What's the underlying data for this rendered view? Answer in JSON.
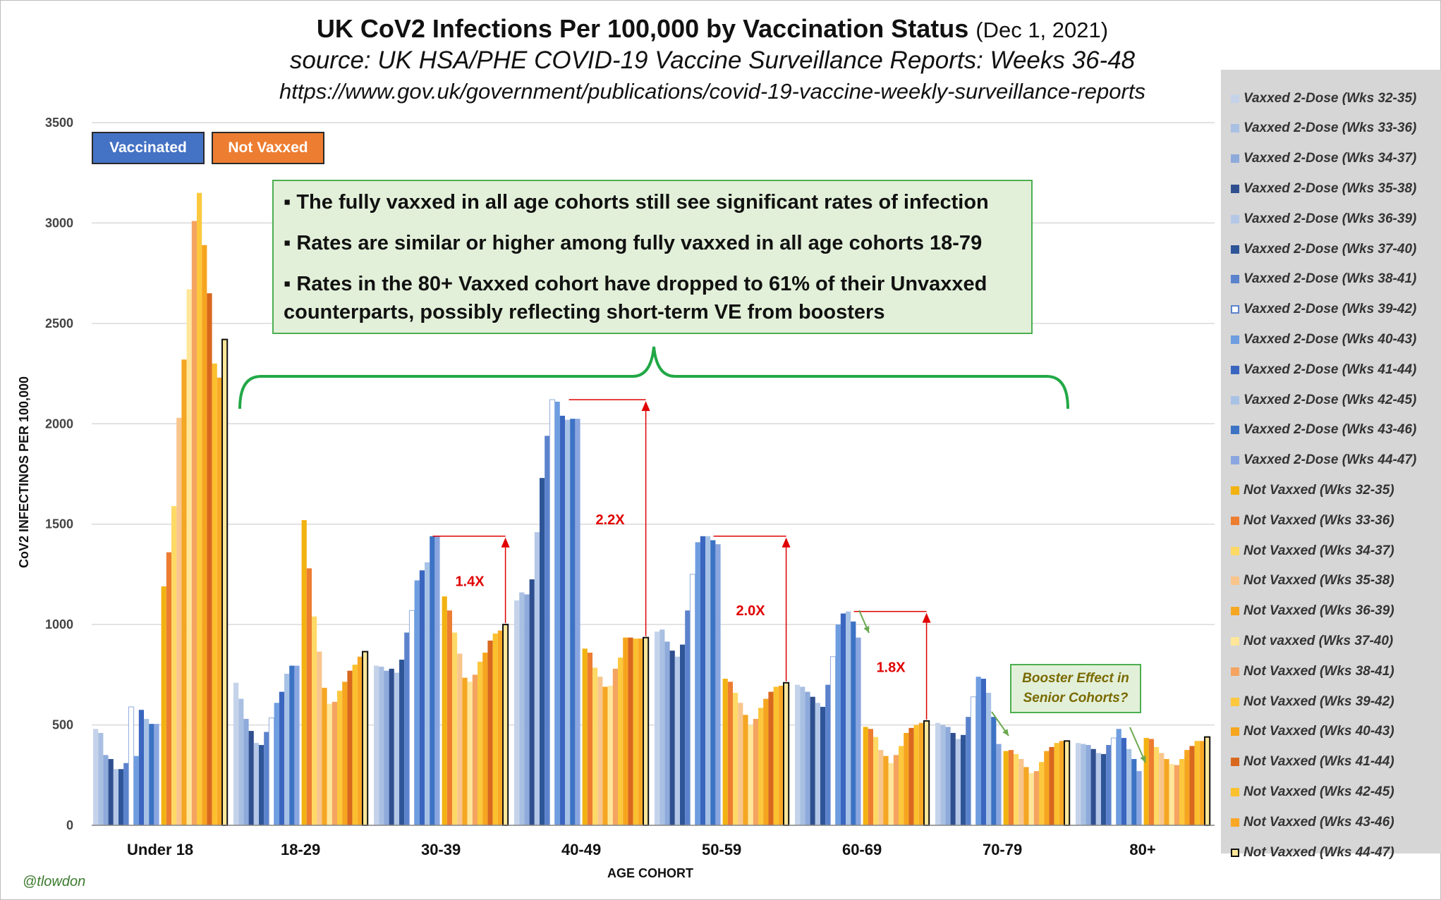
{
  "title": {
    "main": "UK CoV2 Infections Per 100,000 by Vaccination Status",
    "date": "(Dec 1, 2021)",
    "source": "source: UK HSA/PHE COVID-19 Vaccine Surveillance Reports: Weeks 36-48",
    "url": "https://www.gov.uk/government/publications/covid-19-vaccine-weekly-surveillance-reports"
  },
  "badges": {
    "vaccinated": "Vaccinated",
    "not_vaxxed": "Not Vaxxed"
  },
  "notes": [
    "▪ The fully vaxxed in all age cohorts still see significant rates of infection",
    "▪ Rates are similar or higher among fully vaxxed in all age cohorts 18-79",
    "▪ Rates in the 80+ Vaxxed cohort have dropped to 61% of their Unvaxxed counterparts, possibly reflecting short-term VE from boosters"
  ],
  "booster_note": "Booster Effect in Senior Cohorts?",
  "watermark": "@tlowdon",
  "colors": {
    "vax": [
      "#c5d3ea",
      "#a9c0e3",
      "#8eaadb",
      "#2f4f8f",
      "#b4c7e7",
      "#2e5597",
      "#5b82cc",
      "#ffffff",
      "#6e9de0",
      "#3a66c0",
      "#a8c2e6",
      "#3c73c4",
      "#8aa6e0"
    ],
    "unvax": [
      "#f2b212",
      "#ed7d31",
      "#ffd966",
      "#f8c58c",
      "#f5a623",
      "#ffe699",
      "#f4a460",
      "#fcc83d",
      "#f6a51e",
      "#d9681f",
      "#fbc02d",
      "#f9a825",
      "#f3b020"
    ],
    "ratio_text": "#e00000",
    "brace": "#22a846"
  },
  "chart_data": {
    "type": "bar",
    "xlabel": "AGE COHORT",
    "ylabel": "CoV2 INFECTINOS  PER 100,000",
    "ylim": [
      0,
      3500
    ],
    "yticks": [
      0,
      500,
      1000,
      1500,
      2000,
      2500,
      3000,
      3500
    ],
    "categories": [
      "Under 18",
      "18-29",
      "30-39",
      "40-49",
      "50-59",
      "60-69",
      "70-79",
      "80+"
    ],
    "vaccinated_series": [
      "Vaxxed 2-Dose (Wks 32-35)",
      "Vaxxed 2-Dose (Wks 33-36)",
      "Vaxxed 2-Dose (Wks 34-37)",
      "Vaxxed 2-Dose (Wks 35-38)",
      "Vaxxed 2-Dose (Wks 36-39)",
      "Vaxxed 2-Dose (Wks 37-40)",
      "Vaxxed 2-Dose (Wks 38-41)",
      "Vaxxed 2-Dose (Wks 39-42)",
      "Vaxxed 2-Dose (Wks 40-43)",
      "Vaxxed 2-Dose (Wks 41-44)",
      "Vaxxed 2-Dose (Wks 42-45)",
      "Vaxxed 2-Dose (Wks 43-46)",
      "Vaxxed 2-Dose (Wks 44-47)"
    ],
    "unvaxxed_series": [
      "Not Vaxxed (Wks 32-35)",
      "Not Vaxxed (Wks 33-36)",
      "Not Vaxxed (Wks 34-37)",
      "Not Vaxxed (Wks 35-38)",
      "Not Vaxxed (Wks 36-39)",
      "Not vaxxed (Wks 37-40)",
      "Not Vaxxed (Wks 38-41)",
      "Not Vaxxed (Wks 39-42)",
      "Not Vaxxed (Wks 40-43)",
      "Not Vaxxed (Wks 41-44)",
      "Not Vaxxed (Wks 42-45)",
      "Not Vaxxed (Wks 43-46)",
      "Not Vaxxed (Wks 44-47)"
    ],
    "vaccinated_values": [
      [
        480,
        460,
        350,
        330,
        280,
        280,
        310,
        590,
        345,
        575,
        530,
        505,
        505
      ],
      [
        710,
        630,
        530,
        470,
        410,
        400,
        465,
        535,
        610,
        665,
        755,
        795,
        795
      ],
      [
        795,
        790,
        770,
        780,
        760,
        825,
        960,
        1070,
        1220,
        1270,
        1310,
        1440,
        1440
      ],
      [
        1120,
        1160,
        1150,
        1225,
        1460,
        1730,
        1940,
        2120,
        2110,
        2040,
        2020,
        2025,
        2025
      ],
      [
        965,
        975,
        915,
        870,
        840,
        900,
        1070,
        1250,
        1410,
        1440,
        1440,
        1420,
        1400
      ],
      [
        700,
        690,
        665,
        640,
        610,
        590,
        700,
        840,
        1000,
        1055,
        1065,
        1015,
        935
      ],
      [
        510,
        500,
        490,
        460,
        430,
        450,
        540,
        640,
        740,
        730,
        660,
        540,
        405
      ],
      [
        410,
        405,
        400,
        380,
        360,
        355,
        400,
        435,
        480,
        435,
        380,
        330,
        270
      ]
    ],
    "unvaxxed_values": [
      [
        1190,
        1360,
        1590,
        2030,
        2320,
        2670,
        3010,
        3150,
        2890,
        2650,
        2300,
        2230,
        2420
      ],
      [
        1520,
        1280,
        1040,
        865,
        685,
        605,
        615,
        670,
        715,
        770,
        800,
        840,
        865
      ],
      [
        1140,
        1070,
        960,
        855,
        735,
        715,
        750,
        815,
        860,
        920,
        955,
        970,
        1000
      ],
      [
        880,
        860,
        785,
        740,
        690,
        695,
        780,
        835,
        935,
        935,
        930,
        930,
        935
      ],
      [
        730,
        715,
        660,
        610,
        550,
        500,
        530,
        585,
        630,
        665,
        690,
        695,
        710
      ],
      [
        490,
        480,
        440,
        375,
        345,
        310,
        350,
        395,
        460,
        485,
        500,
        510,
        520
      ],
      [
        370,
        375,
        355,
        330,
        290,
        260,
        270,
        315,
        370,
        390,
        410,
        420,
        420
      ],
      [
        435,
        430,
        390,
        360,
        330,
        305,
        300,
        330,
        375,
        395,
        420,
        420,
        440
      ]
    ],
    "ratio_annotations": [
      {
        "category": "30-39",
        "label": "1.4X"
      },
      {
        "category": "40-49",
        "label": "2.2X"
      },
      {
        "category": "50-59",
        "label": "2.0X"
      },
      {
        "category": "60-69",
        "label": "1.8X"
      }
    ]
  }
}
